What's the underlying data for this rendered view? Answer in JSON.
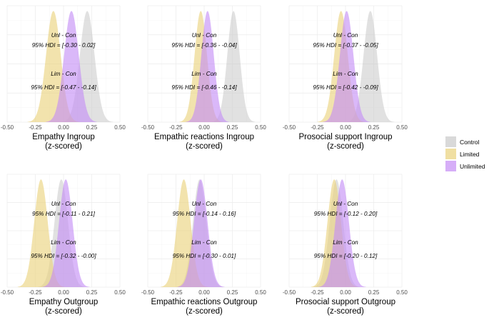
{
  "series": [
    {
      "name": "Control",
      "color": "#c9c9c9"
    },
    {
      "name": "Limited",
      "color": "#ead27a"
    },
    {
      "name": "Unlimited",
      "color": "#c48cf5"
    }
  ],
  "chart_data": [
    {
      "type": "area",
      "xlabel": [
        "Empathy Ingroup",
        "(z-scored)"
      ],
      "xlim": [
        -0.5,
        0.5
      ],
      "xticks": [
        "-0.50",
        "-0.25",
        "0.00",
        "0.25",
        "0.50"
      ],
      "series": [
        {
          "name": "Control",
          "mean": 0.21,
          "sd": 0.065
        },
        {
          "name": "Limited",
          "mean": -0.09,
          "sd": 0.065
        },
        {
          "name": "Unlimited",
          "mean": 0.07,
          "sd": 0.065
        }
      ],
      "annotations": [
        {
          "label": "Unl - Con",
          "hdi": "95% HDI = [-0.30 - 0.02]"
        },
        {
          "label": "Lim - Con",
          "hdi": "95% HDI = [-0.47 - -0.14]"
        }
      ]
    },
    {
      "type": "area",
      "xlabel": [
        "Empathic reactions Ingroup",
        "(z-scored)"
      ],
      "xlim": [
        -0.5,
        0.5
      ],
      "xticks": [
        "-0.50",
        "-0.25",
        "0.00",
        "0.25",
        "0.50"
      ],
      "series": [
        {
          "name": "Control",
          "mean": 0.26,
          "sd": 0.055
        },
        {
          "name": "Limited",
          "mean": -0.03,
          "sd": 0.055
        },
        {
          "name": "Unlimited",
          "mean": 0.03,
          "sd": 0.055
        }
      ],
      "annotations": [
        {
          "label": "Unl - Con",
          "hdi": "95% HDI = [-0.36 - -0.04]"
        },
        {
          "label": "Lim - Con",
          "hdi": "95% HDI = [-0.46 - -0.14]"
        }
      ]
    },
    {
      "type": "area",
      "xlabel": [
        "Prosocial support Ingroup",
        "(z-scored)"
      ],
      "xlim": [
        -0.5,
        0.5
      ],
      "xticks": [
        "-0.50",
        "-0.25",
        "0.00",
        "0.25",
        "0.50"
      ],
      "series": [
        {
          "name": "Control",
          "mean": 0.22,
          "sd": 0.06
        },
        {
          "name": "Limited",
          "mean": -0.04,
          "sd": 0.06
        },
        {
          "name": "Unlimited",
          "mean": 0.01,
          "sd": 0.06
        }
      ],
      "annotations": [
        {
          "label": "Unl - Con",
          "hdi": "95% HDI = [-0.37 - -0.05]"
        },
        {
          "label": "Lim - Con",
          "hdi": "95% HDI = [-0.42 - -0.09]"
        }
      ]
    },
    {
      "type": "area",
      "xlabel": [
        "Empathy Outgroup",
        "(z-scored)"
      ],
      "xlim": [
        -0.5,
        0.5
      ],
      "xticks": [
        "-0.50",
        "-0.25",
        "0.00",
        "0.25",
        "0.50"
      ],
      "series": [
        {
          "name": "Control",
          "mean": -0.02,
          "sd": 0.06
        },
        {
          "name": "Limited",
          "mean": -0.2,
          "sd": 0.06
        },
        {
          "name": "Unlimited",
          "mean": 0.02,
          "sd": 0.06
        }
      ],
      "annotations": [
        {
          "label": "Unl - Con",
          "hdi": "95% HDI = [-0.11 - 0.21]"
        },
        {
          "label": "Lim - Con",
          "hdi": "95% HDI = [-0.32 - -0.00]"
        }
      ]
    },
    {
      "type": "area",
      "xlabel": [
        "Empathic reactions Outgroup",
        "(z-scored)"
      ],
      "xlim": [
        -0.5,
        0.5
      ],
      "xticks": [
        "-0.50",
        "-0.25",
        "0.00",
        "0.25",
        "0.50"
      ],
      "series": [
        {
          "name": "Control",
          "mean": -0.04,
          "sd": 0.06
        },
        {
          "name": "Limited",
          "mean": -0.18,
          "sd": 0.06
        },
        {
          "name": "Unlimited",
          "mean": -0.03,
          "sd": 0.06
        }
      ],
      "annotations": [
        {
          "label": "Unl - Con",
          "hdi": "95% HDI = [-0.14 - 0.16]"
        },
        {
          "label": "Lim - Con",
          "hdi": "95% HDI = [-0.30 - 0.01]"
        }
      ]
    },
    {
      "type": "area",
      "xlabel": [
        "Prosocial support Outgroup",
        "(z-scored)"
      ],
      "xlim": [
        -0.5,
        0.5
      ],
      "xticks": [
        "-0.50",
        "-0.25",
        "0.00",
        "0.25",
        "0.50"
      ],
      "series": [
        {
          "name": "Control",
          "mean": -0.08,
          "sd": 0.06
        },
        {
          "name": "Limited",
          "mean": -0.1,
          "sd": 0.06
        },
        {
          "name": "Unlimited",
          "mean": -0.03,
          "sd": 0.06
        }
      ],
      "annotations": [
        {
          "label": "Unl - Con",
          "hdi": "95% HDI = [-0.12 - 0.20]"
        },
        {
          "label": "Lim - Con",
          "hdi": "95% HDI = [-0.20 - 0.12]"
        }
      ]
    }
  ]
}
